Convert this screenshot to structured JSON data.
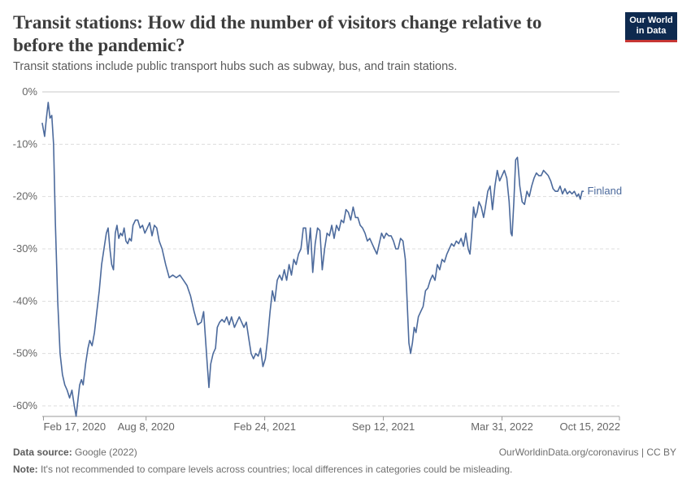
{
  "header": {
    "title": "Transit stations: How did the number of visitors change relative to before the pandemic?",
    "subtitle": "Transit stations include public transport hubs such as subway, bus, and train stations.",
    "logo_line1": "Our World",
    "logo_line2": "in Data"
  },
  "footer": {
    "source_label": "Data source:",
    "source_value": "Google (2022)",
    "url_license": "OurWorldinData.org/coronavirus | CC BY",
    "note_label": "Note:",
    "note_value": "It's not recommended to compare levels across countries; local differences in categories could be misleading."
  },
  "colors": {
    "series": "#4c6a9c",
    "grid": "#dddddd",
    "axis": "#999999",
    "text": "#666666"
  },
  "chart_data": {
    "type": "line",
    "title": "Transit stations: How did the number of visitors change relative to before the pandemic?",
    "xlabel": "",
    "ylabel": "",
    "ylim": [
      -62,
      0
    ],
    "yticks": [
      0,
      -10,
      -20,
      -30,
      -40,
      -50,
      -60
    ],
    "ytick_labels": [
      "0%",
      "-10%",
      "-20%",
      "-30%",
      "-40%",
      "-50%",
      "-60%"
    ],
    "xlim": [
      "2020-02-15",
      "2022-10-15"
    ],
    "xticks": [
      "2020-02-17",
      "2020-08-08",
      "2021-02-24",
      "2021-09-12",
      "2022-03-31",
      "2022-10-15"
    ],
    "xtick_labels": [
      "Feb 17, 2020",
      "Aug 8, 2020",
      "Feb 24, 2021",
      "Sep 12, 2021",
      "Mar 31, 2022",
      "Oct 15, 2022"
    ],
    "grid": "horizontal dashed",
    "series": [
      {
        "name": "Finland",
        "points": [
          [
            "2020-02-15",
            -6
          ],
          [
            "2020-02-19",
            -8.5
          ],
          [
            "2020-02-22",
            -5
          ],
          [
            "2020-02-25",
            -2
          ],
          [
            "2020-02-28",
            -5
          ],
          [
            "2020-03-02",
            -4.5
          ],
          [
            "2020-03-05",
            -10
          ],
          [
            "2020-03-08",
            -25
          ],
          [
            "2020-03-12",
            -40
          ],
          [
            "2020-03-16",
            -50
          ],
          [
            "2020-03-20",
            -54
          ],
          [
            "2020-03-24",
            -56
          ],
          [
            "2020-03-28",
            -57
          ],
          [
            "2020-04-01",
            -58.5
          ],
          [
            "2020-04-05",
            -57
          ],
          [
            "2020-04-09",
            -60
          ],
          [
            "2020-04-12",
            -62
          ],
          [
            "2020-04-15",
            -59
          ],
          [
            "2020-04-18",
            -56
          ],
          [
            "2020-04-21",
            -55
          ],
          [
            "2020-04-24",
            -56
          ],
          [
            "2020-04-28",
            -52
          ],
          [
            "2020-05-02",
            -49
          ],
          [
            "2020-05-05",
            -47.5
          ],
          [
            "2020-05-09",
            -48.5
          ],
          [
            "2020-05-13",
            -46
          ],
          [
            "2020-05-17",
            -42
          ],
          [
            "2020-05-21",
            -38
          ],
          [
            "2020-05-25",
            -33
          ],
          [
            "2020-05-29",
            -30
          ],
          [
            "2020-06-02",
            -27
          ],
          [
            "2020-06-05",
            -26
          ],
          [
            "2020-06-08",
            -30
          ],
          [
            "2020-06-11",
            -33
          ],
          [
            "2020-06-14",
            -34
          ],
          [
            "2020-06-17",
            -27
          ],
          [
            "2020-06-20",
            -25.5
          ],
          [
            "2020-06-23",
            -28
          ],
          [
            "2020-06-26",
            -27
          ],
          [
            "2020-06-29",
            -27.5
          ],
          [
            "2020-07-02",
            -26
          ],
          [
            "2020-07-05",
            -28.5
          ],
          [
            "2020-07-08",
            -29
          ],
          [
            "2020-07-11",
            -28
          ],
          [
            "2020-07-14",
            -28.5
          ],
          [
            "2020-07-17",
            -25.5
          ],
          [
            "2020-07-21",
            -24.5
          ],
          [
            "2020-07-25",
            -24.5
          ],
          [
            "2020-07-29",
            -26
          ],
          [
            "2020-08-02",
            -25.5
          ],
          [
            "2020-08-06",
            -27
          ],
          [
            "2020-08-10",
            -26
          ],
          [
            "2020-08-14",
            -25
          ],
          [
            "2020-08-18",
            -27.5
          ],
          [
            "2020-08-22",
            -25.5
          ],
          [
            "2020-08-26",
            -26
          ],
          [
            "2020-08-30",
            -28.5
          ],
          [
            "2020-09-04",
            -30
          ],
          [
            "2020-09-10",
            -33
          ],
          [
            "2020-09-16",
            -35.5
          ],
          [
            "2020-09-22",
            -35
          ],
          [
            "2020-09-28",
            -35.5
          ],
          [
            "2020-10-04",
            -35
          ],
          [
            "2020-10-10",
            -36
          ],
          [
            "2020-10-16",
            -37
          ],
          [
            "2020-10-22",
            -39
          ],
          [
            "2020-10-28",
            -42
          ],
          [
            "2020-11-03",
            -44.5
          ],
          [
            "2020-11-09",
            -44
          ],
          [
            "2020-11-13",
            -42
          ],
          [
            "2020-11-16",
            -47
          ],
          [
            "2020-11-19",
            -52
          ],
          [
            "2020-11-22",
            -56.5
          ],
          [
            "2020-11-25",
            -52
          ],
          [
            "2020-11-29",
            -50
          ],
          [
            "2020-12-03",
            -49
          ],
          [
            "2020-12-06",
            -45
          ],
          [
            "2020-12-10",
            -44
          ],
          [
            "2020-12-14",
            -43.5
          ],
          [
            "2020-12-18",
            -44
          ],
          [
            "2020-12-22",
            -43
          ],
          [
            "2020-12-26",
            -44.5
          ],
          [
            "2020-12-30",
            -43
          ],
          [
            "2021-01-04",
            -45
          ],
          [
            "2021-01-08",
            -44
          ],
          [
            "2021-01-12",
            -43
          ],
          [
            "2021-01-16",
            -44
          ],
          [
            "2021-01-20",
            -45
          ],
          [
            "2021-01-24",
            -44
          ],
          [
            "2021-01-28",
            -47
          ],
          [
            "2021-02-01",
            -50
          ],
          [
            "2021-02-05",
            -51
          ],
          [
            "2021-02-09",
            -50
          ],
          [
            "2021-02-13",
            -50.5
          ],
          [
            "2021-02-17",
            -49
          ],
          [
            "2021-02-21",
            -52.5
          ],
          [
            "2021-02-25",
            -51
          ],
          [
            "2021-03-01",
            -47
          ],
          [
            "2021-03-05",
            -42
          ],
          [
            "2021-03-09",
            -38
          ],
          [
            "2021-03-13",
            -40
          ],
          [
            "2021-03-17",
            -36
          ],
          [
            "2021-03-21",
            -35
          ],
          [
            "2021-03-25",
            -36
          ],
          [
            "2021-03-29",
            -34
          ],
          [
            "2021-04-02",
            -36
          ],
          [
            "2021-04-06",
            -33
          ],
          [
            "2021-04-10",
            -35
          ],
          [
            "2021-04-14",
            -32
          ],
          [
            "2021-04-18",
            -33
          ],
          [
            "2021-04-22",
            -31
          ],
          [
            "2021-04-26",
            -30
          ],
          [
            "2021-04-30",
            -26
          ],
          [
            "2021-05-04",
            -26
          ],
          [
            "2021-05-08",
            -31
          ],
          [
            "2021-05-12",
            -26
          ],
          [
            "2021-05-16",
            -34.5
          ],
          [
            "2021-05-20",
            -29
          ],
          [
            "2021-05-24",
            -26
          ],
          [
            "2021-05-28",
            -26.5
          ],
          [
            "2021-06-01",
            -34
          ],
          [
            "2021-06-05",
            -30
          ],
          [
            "2021-06-09",
            -27
          ],
          [
            "2021-06-13",
            -27.5
          ],
          [
            "2021-06-17",
            -25.5
          ],
          [
            "2021-06-21",
            -28
          ],
          [
            "2021-06-25",
            -25.5
          ],
          [
            "2021-06-29",
            -26.5
          ],
          [
            "2021-07-03",
            -24.5
          ],
          [
            "2021-07-07",
            -25
          ],
          [
            "2021-07-11",
            -22.5
          ],
          [
            "2021-07-15",
            -23
          ],
          [
            "2021-07-19",
            -24.5
          ],
          [
            "2021-07-23",
            -22
          ],
          [
            "2021-07-27",
            -24
          ],
          [
            "2021-07-31",
            -24
          ],
          [
            "2021-08-04",
            -25.5
          ],
          [
            "2021-08-08",
            -26
          ],
          [
            "2021-08-12",
            -27
          ],
          [
            "2021-08-16",
            -28.5
          ],
          [
            "2021-08-20",
            -28
          ],
          [
            "2021-08-24",
            -29
          ],
          [
            "2021-08-28",
            -30
          ],
          [
            "2021-09-01",
            -31
          ],
          [
            "2021-09-05",
            -29
          ],
          [
            "2021-09-09",
            -27
          ],
          [
            "2021-09-13",
            -28
          ],
          [
            "2021-09-17",
            -27
          ],
          [
            "2021-09-21",
            -27.5
          ],
          [
            "2021-09-25",
            -27.5
          ],
          [
            "2021-09-29",
            -28.5
          ],
          [
            "2021-10-03",
            -30
          ],
          [
            "2021-10-07",
            -30
          ],
          [
            "2021-10-11",
            -28
          ],
          [
            "2021-10-15",
            -28.5
          ],
          [
            "2021-10-19",
            -32
          ],
          [
            "2021-10-22",
            -40
          ],
          [
            "2021-10-25",
            -48
          ],
          [
            "2021-10-28",
            -50
          ],
          [
            "2021-10-31",
            -48
          ],
          [
            "2021-11-03",
            -45
          ],
          [
            "2021-11-06",
            -46
          ],
          [
            "2021-11-10",
            -43
          ],
          [
            "2021-11-14",
            -42
          ],
          [
            "2021-11-18",
            -41
          ],
          [
            "2021-11-22",
            -38
          ],
          [
            "2021-11-26",
            -37.5
          ],
          [
            "2021-11-30",
            -36
          ],
          [
            "2021-12-04",
            -35
          ],
          [
            "2021-12-08",
            -36
          ],
          [
            "2021-12-12",
            -33
          ],
          [
            "2021-12-16",
            -34
          ],
          [
            "2021-12-20",
            -32
          ],
          [
            "2021-12-24",
            -32.5
          ],
          [
            "2021-12-28",
            -31
          ],
          [
            "2022-01-01",
            -30
          ],
          [
            "2022-01-05",
            -29
          ],
          [
            "2022-01-09",
            -29.5
          ],
          [
            "2022-01-13",
            -28.5
          ],
          [
            "2022-01-17",
            -29
          ],
          [
            "2022-01-21",
            -28
          ],
          [
            "2022-01-25",
            -29.5
          ],
          [
            "2022-01-29",
            -27
          ],
          [
            "2022-02-02",
            -30
          ],
          [
            "2022-02-05",
            -31
          ],
          [
            "2022-02-08",
            -27
          ],
          [
            "2022-02-11",
            -22
          ],
          [
            "2022-02-14",
            -24
          ],
          [
            "2022-02-17",
            -23
          ],
          [
            "2022-02-20",
            -21
          ],
          [
            "2022-02-24",
            -22
          ],
          [
            "2022-02-28",
            -24
          ],
          [
            "2022-03-03",
            -22
          ],
          [
            "2022-03-07",
            -19
          ],
          [
            "2022-03-11",
            -18
          ],
          [
            "2022-03-15",
            -22.5
          ],
          [
            "2022-03-19",
            -18
          ],
          [
            "2022-03-23",
            -15
          ],
          [
            "2022-03-27",
            -17
          ],
          [
            "2022-03-31",
            -16
          ],
          [
            "2022-04-04",
            -15
          ],
          [
            "2022-04-08",
            -16.5
          ],
          [
            "2022-04-12",
            -21
          ],
          [
            "2022-04-15",
            -27
          ],
          [
            "2022-04-17",
            -27.5
          ],
          [
            "2022-04-20",
            -21
          ],
          [
            "2022-04-23",
            -13
          ],
          [
            "2022-04-26",
            -12.5
          ],
          [
            "2022-04-30",
            -18
          ],
          [
            "2022-05-04",
            -21
          ],
          [
            "2022-05-08",
            -21.5
          ],
          [
            "2022-05-12",
            -19
          ],
          [
            "2022-05-16",
            -20
          ],
          [
            "2022-05-20",
            -18
          ],
          [
            "2022-05-24",
            -16.5
          ],
          [
            "2022-05-28",
            -15.5
          ],
          [
            "2022-06-01",
            -16
          ],
          [
            "2022-06-05",
            -16
          ],
          [
            "2022-06-09",
            -15
          ],
          [
            "2022-06-13",
            -15.5
          ],
          [
            "2022-06-17",
            -16
          ],
          [
            "2022-06-21",
            -17
          ],
          [
            "2022-06-25",
            -18.5
          ],
          [
            "2022-06-29",
            -19
          ],
          [
            "2022-07-03",
            -19
          ],
          [
            "2022-07-07",
            -18
          ],
          [
            "2022-07-11",
            -19.5
          ],
          [
            "2022-07-15",
            -18.5
          ],
          [
            "2022-07-19",
            -19.5
          ],
          [
            "2022-07-23",
            -19
          ],
          [
            "2022-07-27",
            -19.5
          ],
          [
            "2022-07-31",
            -19
          ],
          [
            "2022-08-04",
            -20
          ],
          [
            "2022-08-07",
            -19.5
          ],
          [
            "2022-08-10",
            -20.5
          ],
          [
            "2022-08-13",
            -19
          ],
          [
            "2022-08-15",
            -19
          ]
        ]
      }
    ]
  }
}
